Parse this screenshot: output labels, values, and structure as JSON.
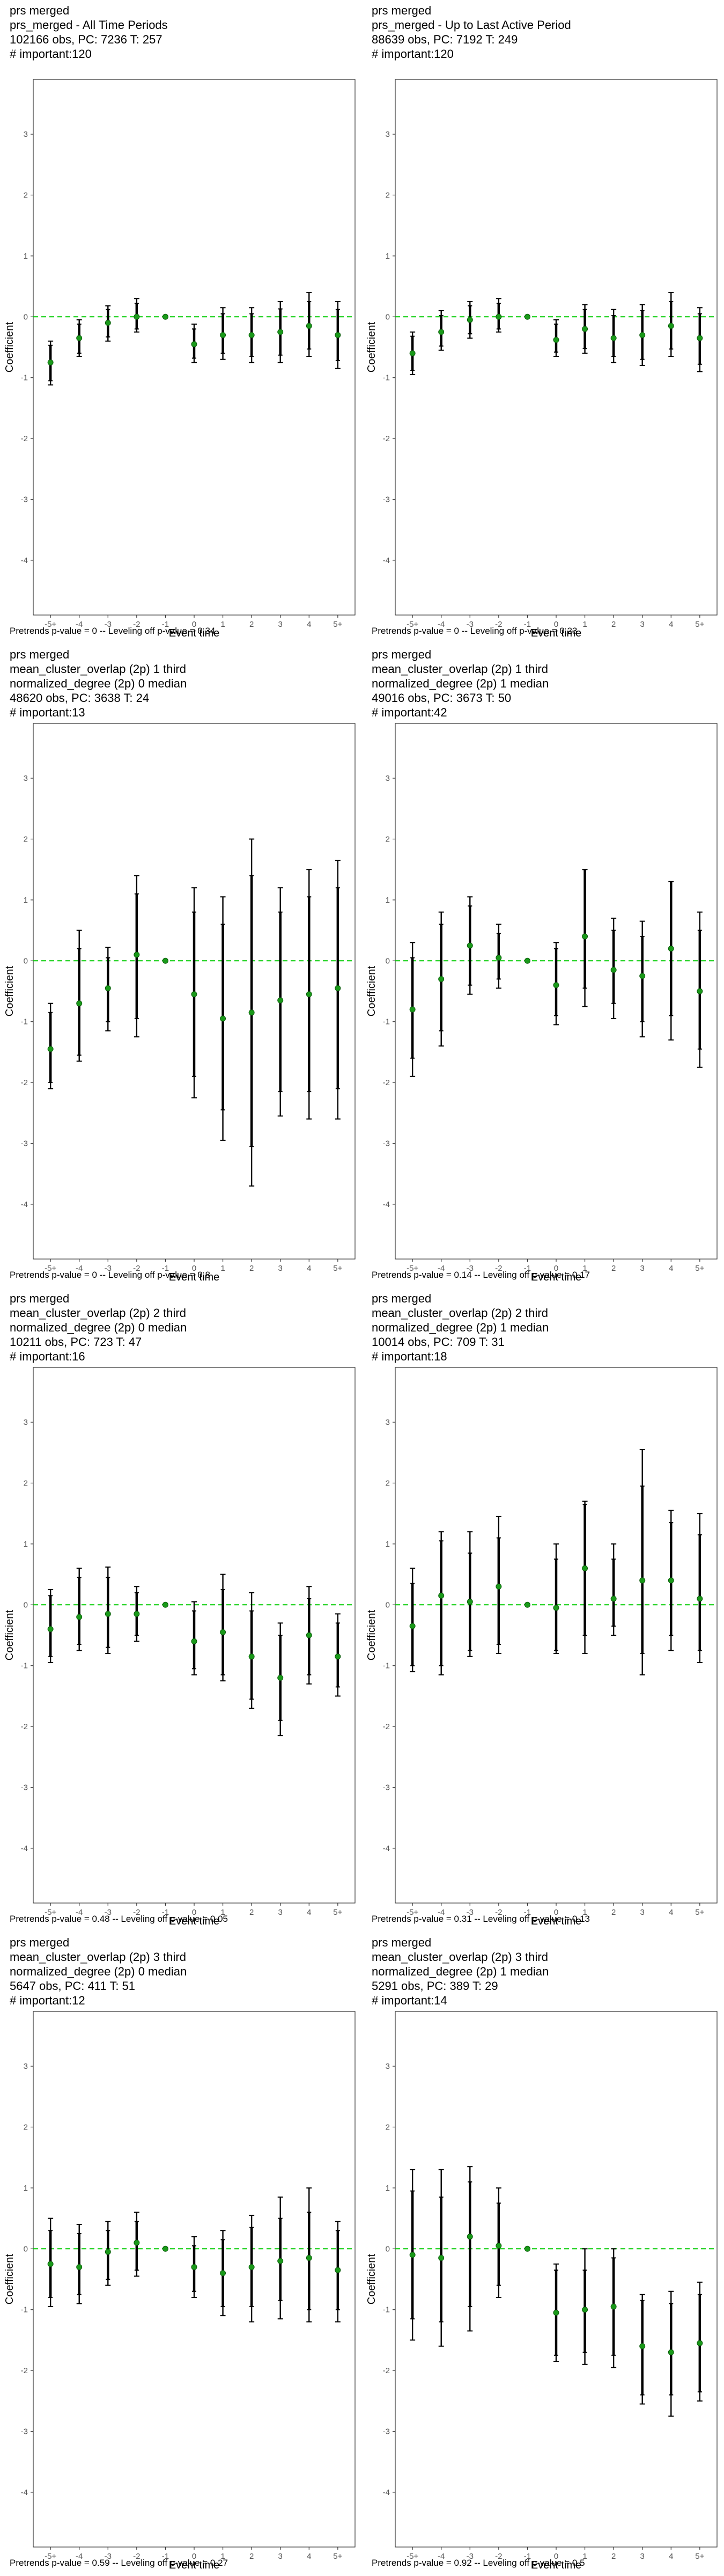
{
  "axes": {
    "x_label": "Event time",
    "y_label": "Coefficient",
    "x_ticks": [
      "-5+",
      "-4",
      "-3",
      "-2",
      "-1",
      "0",
      "1",
      "2",
      "3",
      "4",
      "5+"
    ],
    "y_ticks": [
      -4,
      -3,
      -2,
      -1,
      0,
      1,
      2,
      3
    ],
    "ylim": [
      -4.9,
      3.9
    ]
  },
  "colors": {
    "zero_line": "#00cc00",
    "point": "#1a9a1a",
    "error_bar": "#000000"
  },
  "panels": [
    {
      "title_lines": [
        "prs merged",
        "prs_merged - All Time Periods",
        "102166 obs, PC: 7236 T: 257",
        "# important:120"
      ],
      "footer": "Pretrends p-value = 0 -- Leveling off p-value = 0.34"
    },
    {
      "title_lines": [
        "prs merged",
        "prs_merged - Up to Last Active Period",
        "88639 obs, PC: 7192 T: 249",
        "# important:120"
      ],
      "footer": "Pretrends p-value = 0 -- Leveling off p-value = 0.23"
    },
    {
      "title_lines": [
        "prs merged",
        "mean_cluster_overlap (2p) 1 third",
        "normalized_degree (2p) 0 median",
        "48620 obs, PC: 3638 T: 24",
        "# important:13"
      ],
      "footer": "Pretrends p-value = 0 -- Leveling off p-value = 0.8"
    },
    {
      "title_lines": [
        "prs merged",
        "mean_cluster_overlap (2p) 1 third",
        "normalized_degree (2p) 1 median",
        "49016 obs, PC: 3673 T: 50",
        "# important:42"
      ],
      "footer": "Pretrends p-value = 0.14 -- Leveling off p-value = 0.17"
    },
    {
      "title_lines": [
        "prs merged",
        "mean_cluster_overlap (2p) 2 third",
        "normalized_degree (2p) 0 median",
        "10211 obs, PC: 723 T: 47",
        "# important:16"
      ],
      "footer": "Pretrends p-value = 0.48 -- Leveling off p-value = 0.05"
    },
    {
      "title_lines": [
        "prs merged",
        "mean_cluster_overlap (2p) 2 third",
        "normalized_degree (2p) 1 median",
        "10014 obs, PC: 709 T: 31",
        "# important:18"
      ],
      "footer": "Pretrends p-value = 0.31 -- Leveling off p-value = 0.13"
    },
    {
      "title_lines": [
        "prs merged",
        "mean_cluster_overlap (2p) 3 third",
        "normalized_degree (2p) 0 median",
        "5647 obs, PC: 411 T: 51",
        "# important:12"
      ],
      "footer": "Pretrends p-value = 0.59 -- Leveling off p-value = 0.27"
    },
    {
      "title_lines": [
        "prs merged",
        "mean_cluster_overlap (2p) 3 third",
        "normalized_degree (2p) 1 median",
        "5291 obs, PC: 389 T: 29",
        "# important:14"
      ],
      "footer": "Pretrends p-value = 0.92 -- Leveling off p-value = 0.5"
    }
  ],
  "chart_data": [
    {
      "type": "scatter",
      "xlabel": "Event time",
      "ylabel": "Coefficient",
      "ylim": [
        -4.9,
        3.9
      ],
      "categories": [
        "-5+",
        "-4",
        "-3",
        "-2",
        "-1",
        "0",
        "1",
        "2",
        "3",
        "4",
        "5+"
      ],
      "estimate": [
        -0.75,
        -0.35,
        -0.1,
        0.0,
        0.0,
        -0.45,
        -0.3,
        -0.3,
        -0.25,
        -0.15,
        -0.3
      ],
      "ci95_low": [
        -1.12,
        -0.65,
        -0.4,
        -0.25,
        0.0,
        -0.75,
        -0.7,
        -0.75,
        -0.75,
        -0.65,
        -0.85
      ],
      "ci95_high": [
        -0.4,
        -0.05,
        0.18,
        0.3,
        0.0,
        -0.12,
        0.15,
        0.15,
        0.25,
        0.4,
        0.25
      ],
      "ci90_low": [
        -1.05,
        -0.6,
        -0.33,
        -0.2,
        0.0,
        -0.68,
        -0.6,
        -0.65,
        -0.63,
        -0.53,
        -0.72
      ],
      "ci90_high": [
        -0.47,
        -0.12,
        0.12,
        0.22,
        0.0,
        -0.2,
        0.05,
        0.05,
        0.13,
        0.25,
        0.12
      ]
    },
    {
      "type": "scatter",
      "xlabel": "Event time",
      "ylabel": "Coefficient",
      "ylim": [
        -4.9,
        3.9
      ],
      "categories": [
        "-5+",
        "-4",
        "-3",
        "-2",
        "-1",
        "0",
        "1",
        "2",
        "3",
        "4",
        "5+"
      ],
      "estimate": [
        -0.6,
        -0.25,
        -0.05,
        0.0,
        0.0,
        -0.38,
        -0.2,
        -0.35,
        -0.3,
        -0.15,
        -0.35
      ],
      "ci95_low": [
        -0.95,
        -0.55,
        -0.35,
        -0.25,
        0.0,
        -0.65,
        -0.6,
        -0.75,
        -0.8,
        -0.65,
        -0.9
      ],
      "ci95_high": [
        -0.25,
        0.1,
        0.25,
        0.3,
        0.0,
        -0.05,
        0.2,
        0.12,
        0.2,
        0.4,
        0.15
      ],
      "ci90_low": [
        -0.88,
        -0.48,
        -0.28,
        -0.2,
        0.0,
        -0.58,
        -0.52,
        -0.65,
        -0.7,
        -0.53,
        -0.78
      ],
      "ci90_high": [
        -0.32,
        0.02,
        0.18,
        0.22,
        0.0,
        -0.12,
        0.12,
        0.02,
        0.1,
        0.25,
        0.05
      ]
    },
    {
      "type": "scatter",
      "xlabel": "Event time",
      "ylabel": "Coefficient",
      "ylim": [
        -4.9,
        3.9
      ],
      "categories": [
        "-5+",
        "-4",
        "-3",
        "-2",
        "-1",
        "0",
        "1",
        "2",
        "3",
        "4",
        "5+"
      ],
      "estimate": [
        -1.45,
        -0.7,
        -0.45,
        0.1,
        0.0,
        -0.55,
        -0.95,
        -0.85,
        -0.65,
        -0.55,
        -0.45
      ],
      "ci95_low": [
        -2.1,
        -1.65,
        -1.15,
        -1.25,
        0.0,
        -2.25,
        -2.95,
        -3.7,
        -2.55,
        -2.6,
        -2.6
      ],
      "ci95_high": [
        -0.7,
        0.5,
        0.22,
        1.4,
        0.0,
        1.2,
        1.05,
        2.0,
        1.2,
        1.5,
        1.65
      ],
      "ci90_low": [
        -2.0,
        -1.55,
        -1.0,
        -0.95,
        0.0,
        -1.9,
        -2.45,
        -3.05,
        -2.15,
        -2.15,
        -2.1
      ],
      "ci90_high": [
        -0.85,
        0.2,
        0.05,
        1.1,
        0.0,
        0.8,
        0.6,
        1.4,
        0.8,
        1.05,
        1.2
      ]
    },
    {
      "type": "scatter",
      "xlabel": "Event time",
      "ylabel": "Coefficient",
      "ylim": [
        -4.9,
        3.9
      ],
      "categories": [
        "-5+",
        "-4",
        "-3",
        "-2",
        "-1",
        "0",
        "1",
        "2",
        "3",
        "4",
        "5+"
      ],
      "estimate": [
        -0.8,
        -0.3,
        0.25,
        0.05,
        0.0,
        -0.4,
        0.4,
        -0.15,
        -0.25,
        0.2,
        -0.5
      ],
      "ci95_low": [
        -1.9,
        -1.4,
        -0.55,
        -0.45,
        0.0,
        -1.05,
        -0.75,
        -0.95,
        -1.25,
        -1.3,
        -1.75
      ],
      "ci95_high": [
        0.3,
        0.8,
        1.05,
        0.6,
        0.0,
        0.3,
        1.5,
        0.7,
        0.65,
        1.3,
        0.8
      ],
      "ci90_low": [
        -1.6,
        -1.15,
        -0.4,
        -0.3,
        0.0,
        -0.9,
        -0.45,
        -0.7,
        -1.0,
        -0.9,
        -1.45
      ],
      "ci90_high": [
        0.05,
        0.6,
        0.9,
        0.45,
        0.0,
        0.2,
        1.5,
        0.5,
        0.4,
        1.3,
        0.5
      ]
    },
    {
      "type": "scatter",
      "xlabel": "Event time",
      "ylabel": "Coefficient",
      "ylim": [
        -4.9,
        3.9
      ],
      "categories": [
        "-5+",
        "-4",
        "-3",
        "-2",
        "-1",
        "0",
        "1",
        "2",
        "3",
        "4",
        "5+"
      ],
      "estimate": [
        -0.4,
        -0.2,
        -0.15,
        -0.15,
        0.0,
        -0.6,
        -0.45,
        -0.85,
        -1.2,
        -0.5,
        -0.85
      ],
      "ci95_low": [
        -0.95,
        -0.75,
        -0.8,
        -0.6,
        0.0,
        -1.15,
        -1.25,
        -1.7,
        -2.15,
        -1.3,
        -1.5
      ],
      "ci95_high": [
        0.25,
        0.6,
        0.62,
        0.3,
        0.0,
        0.05,
        0.5,
        0.2,
        -0.3,
        0.3,
        -0.15
      ],
      "ci90_low": [
        -0.85,
        -0.65,
        -0.7,
        -0.5,
        0.0,
        -1.05,
        -1.15,
        -1.55,
        -1.9,
        -1.15,
        -1.35
      ],
      "ci90_high": [
        0.15,
        0.45,
        0.45,
        0.2,
        0.0,
        -0.1,
        0.25,
        -0.1,
        -0.5,
        0.1,
        -0.3
      ]
    },
    {
      "type": "scatter",
      "xlabel": "Event time",
      "ylabel": "Coefficient",
      "ylim": [
        -4.9,
        3.9
      ],
      "categories": [
        "-5+",
        "-4",
        "-3",
        "-2",
        "-1",
        "0",
        "1",
        "2",
        "3",
        "4",
        "5+"
      ],
      "estimate": [
        -0.35,
        0.15,
        0.05,
        0.3,
        0.0,
        -0.05,
        0.6,
        0.1,
        0.4,
        0.4,
        0.1
      ],
      "ci95_low": [
        -1.1,
        -1.15,
        -0.85,
        -0.8,
        0.0,
        -0.8,
        -0.8,
        -0.5,
        -1.15,
        -0.75,
        -0.95
      ],
      "ci95_high": [
        0.6,
        1.2,
        1.2,
        1.45,
        0.0,
        1.0,
        1.7,
        1.0,
        2.55,
        1.55,
        1.5
      ],
      "ci90_low": [
        -1.0,
        -1.0,
        -0.75,
        -0.65,
        0.0,
        -0.75,
        -0.5,
        -0.35,
        -0.8,
        -0.5,
        -0.75
      ],
      "ci90_high": [
        0.35,
        1.05,
        0.85,
        1.1,
        0.0,
        0.75,
        1.65,
        0.75,
        1.95,
        1.35,
        1.15
      ]
    },
    {
      "type": "scatter",
      "xlabel": "Event time",
      "ylabel": "Coefficient",
      "ylim": [
        -4.9,
        3.9
      ],
      "categories": [
        "-5+",
        "-4",
        "-3",
        "-2",
        "-1",
        "0",
        "1",
        "2",
        "3",
        "4",
        "5+"
      ],
      "estimate": [
        -0.25,
        -0.3,
        -0.05,
        0.1,
        0.0,
        -0.3,
        -0.4,
        -0.3,
        -0.2,
        -0.15,
        -0.35
      ],
      "ci95_low": [
        -0.95,
        -0.9,
        -0.6,
        -0.45,
        0.0,
        -0.8,
        -1.1,
        -1.2,
        -1.15,
        -1.2,
        -1.2
      ],
      "ci95_high": [
        0.5,
        0.4,
        0.45,
        0.6,
        0.0,
        0.2,
        0.3,
        0.55,
        0.85,
        1.0,
        0.45
      ],
      "ci90_low": [
        -0.8,
        -0.75,
        -0.5,
        -0.35,
        0.0,
        -0.7,
        -0.95,
        -0.95,
        -0.85,
        -1.0,
        -1.0
      ],
      "ci90_high": [
        0.3,
        0.25,
        0.3,
        0.45,
        0.0,
        0.05,
        0.15,
        0.35,
        0.5,
        0.6,
        0.3
      ]
    },
    {
      "type": "scatter",
      "xlabel": "Event time",
      "ylabel": "Coefficient",
      "ylim": [
        -4.9,
        3.9
      ],
      "categories": [
        "-5+",
        "-4",
        "-3",
        "-2",
        "-1",
        "0",
        "1",
        "2",
        "3",
        "4",
        "5+"
      ],
      "estimate": [
        -0.1,
        -0.15,
        0.2,
        0.05,
        0.0,
        -1.05,
        -1.0,
        -0.95,
        -1.6,
        -1.7,
        -1.55
      ],
      "ci95_low": [
        -1.5,
        -1.6,
        -1.35,
        -0.8,
        0.0,
        -1.85,
        -1.9,
        -1.95,
        -2.55,
        -2.75,
        -2.5
      ],
      "ci95_high": [
        1.3,
        1.3,
        1.35,
        1.0,
        0.0,
        -0.25,
        0.0,
        0.0,
        -0.75,
        -0.7,
        -0.55
      ],
      "ci90_low": [
        -1.15,
        -1.2,
        -0.95,
        -0.6,
        0.0,
        -1.75,
        -1.7,
        -1.75,
        -2.4,
        -2.4,
        -2.35
      ],
      "ci90_high": [
        0.95,
        0.85,
        1.1,
        0.75,
        0.0,
        -0.35,
        -0.35,
        -0.15,
        -0.85,
        -0.9,
        -0.75
      ]
    }
  ]
}
